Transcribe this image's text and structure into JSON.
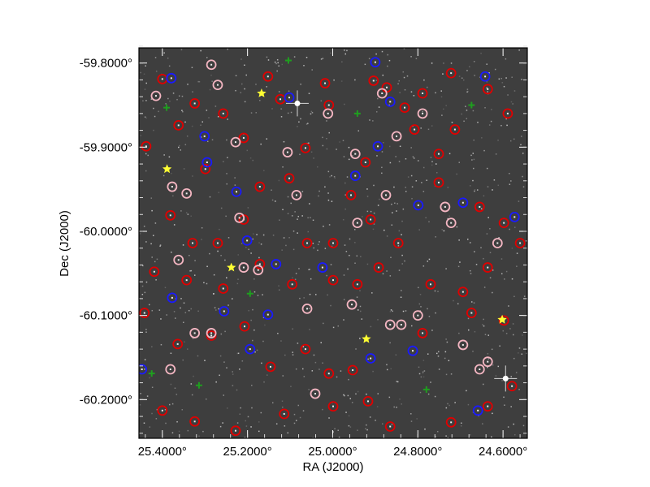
{
  "chart_data": {
    "type": "scatter",
    "title": "",
    "xlabel": "RA (J2000)",
    "ylabel": "Dec (J2000)",
    "xlim": [
      25.455,
      24.543
    ],
    "ylim": [
      -60.246,
      -59.782
    ],
    "grid": false,
    "background": "grayscale sky image",
    "x_ticks": [
      25.4,
      25.2,
      25.0,
      24.8,
      24.6
    ],
    "x_tick_labels": [
      "25.4000°",
      "25.2000°",
      "25.0000°",
      "24.8000°",
      "24.6000°"
    ],
    "y_ticks": [
      -59.8,
      -59.9,
      -60.0,
      -60.1,
      -60.2
    ],
    "y_tick_labels": [
      "-59.8000°",
      "-59.9000°",
      "-60.0000°",
      "-60.1000°",
      "-60.2000°"
    ],
    "series": [
      {
        "name": "red-circles",
        "marker": "circle",
        "color": "#e00000",
        "points": [
          [
            25.4,
            -59.819
          ],
          [
            25.324,
            -59.848
          ],
          [
            25.299,
            -59.926
          ],
          [
            25.209,
            -59.889
          ],
          [
            25.152,
            -59.816
          ],
          [
            25.123,
            -59.843
          ],
          [
            25.064,
            -59.901
          ],
          [
            25.018,
            -59.824
          ],
          [
            25.009,
            -59.85
          ],
          [
            24.904,
            -59.821
          ],
          [
            24.873,
            -59.829
          ],
          [
            24.831,
            -59.853
          ],
          [
            24.789,
            -59.836
          ],
          [
            24.722,
            -59.812
          ],
          [
            24.636,
            -59.831
          ],
          [
            24.589,
            -59.86
          ],
          [
            25.381,
            -59.981
          ],
          [
            25.329,
            -60.014
          ],
          [
            25.27,
            -60.014
          ],
          [
            25.209,
            -59.986
          ],
          [
            25.171,
            -59.947
          ],
          [
            25.102,
            -59.937
          ],
          [
            25.06,
            -60.014
          ],
          [
            24.999,
            -60.014
          ],
          [
            24.957,
            -59.957
          ],
          [
            24.911,
            -59.986
          ],
          [
            24.846,
            -60.014
          ],
          [
            24.751,
            -59.942
          ],
          [
            24.655,
            -59.971
          ],
          [
            24.598,
            -59.99
          ],
          [
            25.419,
            -60.048
          ],
          [
            25.343,
            -60.058
          ],
          [
            25.257,
            -60.068
          ],
          [
            25.171,
            -60.039
          ],
          [
            25.095,
            -60.063
          ],
          [
            24.999,
            -60.058
          ],
          [
            24.942,
            -60.063
          ],
          [
            24.892,
            -60.043
          ],
          [
            24.77,
            -60.063
          ],
          [
            24.694,
            -60.072
          ],
          [
            24.636,
            -60.043
          ],
          [
            24.56,
            -60.014
          ],
          [
            25.442,
            -60.097
          ],
          [
            25.364,
            -60.134
          ],
          [
            25.285,
            -60.124
          ],
          [
            25.207,
            -60.113
          ],
          [
            25.146,
            -60.161
          ],
          [
            25.064,
            -60.14
          ],
          [
            25.009,
            -60.169
          ],
          [
            24.953,
            -60.165
          ],
          [
            24.917,
            -60.202
          ],
          [
            24.789,
            -60.121
          ],
          [
            24.674,
            -60.097
          ],
          [
            24.598,
            -60.106
          ],
          [
            24.579,
            -60.184
          ],
          [
            25.4,
            -60.213
          ],
          [
            25.324,
            -60.226
          ],
          [
            25.228,
            -60.237
          ],
          [
            25.114,
            -60.217
          ],
          [
            24.999,
            -60.208
          ],
          [
            24.865,
            -60.232
          ],
          [
            24.722,
            -60.227
          ],
          [
            24.636,
            -60.208
          ],
          [
            25.438,
            -59.899
          ],
          [
            25.362,
            -59.874
          ],
          [
            25.257,
            -59.86
          ],
          [
            24.923,
            -59.918
          ],
          [
            24.808,
            -59.879
          ],
          [
            24.713,
            -59.879
          ],
          [
            24.751,
            -59.908
          ]
        ]
      },
      {
        "name": "pink-circles",
        "marker": "circle",
        "color": "#f4b6c2",
        "points": [
          [
            25.285,
            -59.802
          ],
          [
            25.27,
            -59.826
          ],
          [
            25.415,
            -59.839
          ],
          [
            25.228,
            -59.894
          ],
          [
            25.106,
            -59.906
          ],
          [
            25.011,
            -59.86
          ],
          [
            24.947,
            -59.908
          ],
          [
            24.884,
            -59.836
          ],
          [
            24.85,
            -59.887
          ],
          [
            24.789,
            -59.86
          ],
          [
            25.377,
            -59.947
          ],
          [
            25.343,
            -59.955
          ],
          [
            25.219,
            -59.984
          ],
          [
            25.085,
            -59.957
          ],
          [
            24.942,
            -59.99
          ],
          [
            24.875,
            -59.957
          ],
          [
            24.722,
            -59.99
          ],
          [
            24.613,
            -60.014
          ],
          [
            25.362,
            -60.034
          ],
          [
            25.209,
            -60.043
          ],
          [
            25.175,
            -60.046
          ],
          [
            25.06,
            -60.092
          ],
          [
            24.955,
            -60.087
          ],
          [
            24.865,
            -60.111
          ],
          [
            24.8,
            -60.1
          ],
          [
            24.694,
            -60.135
          ],
          [
            24.636,
            -60.155
          ],
          [
            24.655,
            -60.164
          ],
          [
            25.285,
            -60.121
          ],
          [
            25.324,
            -60.121
          ],
          [
            25.041,
            -60.193
          ],
          [
            24.839,
            -60.111
          ],
          [
            25.381,
            -60.164
          ],
          [
            24.736,
            -59.971
          ]
        ]
      },
      {
        "name": "blue-circles",
        "marker": "circle",
        "color": "#1a1aff",
        "points": [
          [
            25.379,
            -59.818
          ],
          [
            25.301,
            -59.887
          ],
          [
            25.295,
            -59.918
          ],
          [
            25.226,
            -59.953
          ],
          [
            25.201,
            -60.011
          ],
          [
            25.102,
            -59.841
          ],
          [
            24.9,
            -59.799
          ],
          [
            24.947,
            -59.934
          ],
          [
            24.894,
            -59.899
          ],
          [
            24.865,
            -59.846
          ],
          [
            24.799,
            -59.969
          ],
          [
            24.694,
            -59.966
          ],
          [
            24.642,
            -59.816
          ],
          [
            24.573,
            -59.983
          ],
          [
            25.377,
            -60.079
          ],
          [
            25.255,
            -60.095
          ],
          [
            25.194,
            -60.14
          ],
          [
            25.152,
            -60.099
          ],
          [
            24.911,
            -60.151
          ],
          [
            24.812,
            -60.142
          ],
          [
            24.659,
            -60.213
          ],
          [
            25.448,
            -60.164
          ],
          [
            25.024,
            -60.043
          ],
          [
            25.133,
            -60.039
          ]
        ]
      },
      {
        "name": "green-plus",
        "marker": "plus",
        "color": "#1f9e1f",
        "points": [
          [
            25.425,
            -60.169
          ],
          [
            25.314,
            -60.183
          ],
          [
            25.194,
            -60.074
          ],
          [
            24.674,
            -59.85
          ],
          [
            24.942,
            -59.86
          ],
          [
            24.78,
            -60.188
          ],
          [
            25.104,
            -59.797
          ],
          [
            25.39,
            -59.853
          ]
        ]
      },
      {
        "name": "yellow-stars",
        "marker": "star",
        "color": "#ffff33",
        "points": [
          [
            25.167,
            -59.836
          ],
          [
            25.389,
            -59.926
          ],
          [
            25.238,
            -60.043
          ],
          [
            24.921,
            -60.128
          ],
          [
            24.602,
            -60.105
          ]
        ]
      },
      {
        "name": "bright-sources",
        "marker": "spike",
        "color": "#ffffff",
        "points": [
          [
            25.083,
            -59.848
          ],
          [
            24.594,
            -60.175
          ]
        ]
      }
    ]
  }
}
